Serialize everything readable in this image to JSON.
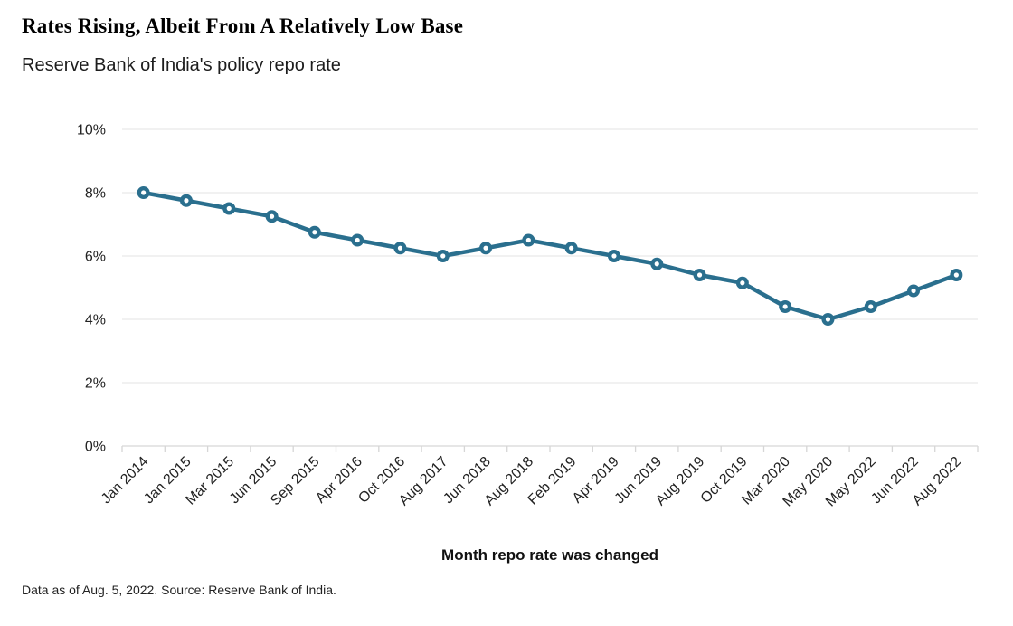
{
  "header": {
    "title": "Rates Rising, Albeit From A Relatively Low Base",
    "subtitle": "Reserve Bank of India's policy repo rate"
  },
  "footer": {
    "note": "Data as of Aug. 5, 2022. Source: Reserve Bank of India."
  },
  "chart_data": {
    "type": "line",
    "title": "Rates Rising, Albeit From A Relatively Low Base",
    "subtitle": "Reserve Bank of India's policy repo rate",
    "xlabel": "Month repo rate was changed",
    "ylabel": "",
    "categories": [
      "Jan 2014",
      "Jan 2015",
      "Mar 2015",
      "Jun 2015",
      "Sep 2015",
      "Apr 2016",
      "Oct 2016",
      "Aug 2017",
      "Jun 2018",
      "Aug 2018",
      "Feb 2019",
      "Apr 2019",
      "Jun 2019",
      "Aug 2019",
      "Oct 2019",
      "Mar 2020",
      "May 2020",
      "May 2022",
      "Jun 2022",
      "Aug 2022"
    ],
    "values": [
      8.0,
      7.75,
      7.5,
      7.25,
      6.75,
      6.5,
      6.25,
      6.0,
      6.25,
      6.5,
      6.25,
      6.0,
      5.75,
      5.4,
      5.15,
      4.4,
      4.0,
      4.4,
      4.9,
      5.4
    ],
    "ylim": [
      0,
      10
    ],
    "yticks": [
      0,
      2,
      4,
      6,
      8,
      10
    ],
    "ytick_suffix": "%",
    "x_tick_rotation": -45,
    "grid": true,
    "legend": "none",
    "line_color": "#2a6f8e",
    "marker": "open-circle",
    "marker_fill": "#ffffff",
    "gridline_color": "#e3e3e3",
    "axis_color": "#d6d6d6",
    "tick_label_color": "#222222"
  }
}
